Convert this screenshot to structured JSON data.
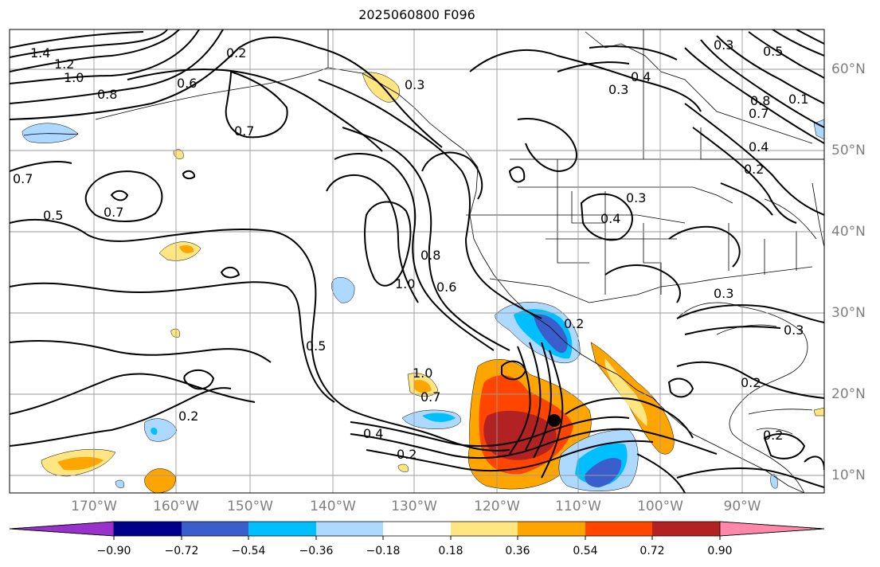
{
  "title": "2025060800 F096",
  "map": {
    "lon_labels": [
      "170°W",
      "160°W",
      "150°W",
      "140°W",
      "130°W",
      "120°W",
      "110°W",
      "100°W",
      "90°W"
    ],
    "lat_labels": [
      "60°N",
      "50°N",
      "40°N",
      "30°N",
      "20°N",
      "10°N"
    ],
    "marker": "storm-center-dot",
    "contour_labels": [
      {
        "id": "c1",
        "text": "1.4"
      },
      {
        "id": "c2",
        "text": "1.2"
      },
      {
        "id": "c3",
        "text": "1.0"
      },
      {
        "id": "c4",
        "text": "0.8"
      },
      {
        "id": "c5",
        "text": "0.6"
      },
      {
        "id": "c6",
        "text": "0.2"
      },
      {
        "id": "c7",
        "text": "0.7"
      },
      {
        "id": "c8",
        "text": "0.7"
      },
      {
        "id": "c9",
        "text": "0.5"
      },
      {
        "id": "c10",
        "text": "0.7"
      },
      {
        "id": "c11",
        "text": "0.3"
      },
      {
        "id": "c12",
        "text": "0.4"
      },
      {
        "id": "c13",
        "text": "0.3"
      },
      {
        "id": "c14",
        "text": "0.8"
      },
      {
        "id": "c15",
        "text": "0.7"
      },
      {
        "id": "c16",
        "text": "0.4"
      },
      {
        "id": "c17",
        "text": "0.2"
      },
      {
        "id": "c18",
        "text": "0.3"
      },
      {
        "id": "c19",
        "text": "0.4"
      },
      {
        "id": "c20",
        "text": "0.8"
      },
      {
        "id": "c21",
        "text": "1.0"
      },
      {
        "id": "c22",
        "text": "0.6"
      },
      {
        "id": "c23",
        "text": "0.5"
      },
      {
        "id": "c24",
        "text": "0.2"
      },
      {
        "id": "c25",
        "text": "1.0"
      },
      {
        "id": "c26",
        "text": "0.7"
      },
      {
        "id": "c27",
        "text": "0.4"
      },
      {
        "id": "c28",
        "text": "0.2"
      },
      {
        "id": "c29",
        "text": "0.3"
      },
      {
        "id": "c30",
        "text": "0.3"
      },
      {
        "id": "c31",
        "text": "0.2"
      },
      {
        "id": "c32",
        "text": "0.2"
      },
      {
        "id": "c33",
        "text": "0.2"
      },
      {
        "id": "c34",
        "text": "0.5"
      },
      {
        "id": "c35",
        "text": "0.1"
      },
      {
        "id": "c36",
        "text": "0.3"
      }
    ]
  },
  "colorbar": {
    "tick_labels": [
      "−0.90",
      "−0.72",
      "−0.54",
      "−0.36",
      "−0.18",
      "0.18",
      "0.36",
      "0.54",
      "0.72",
      "0.90"
    ],
    "colors": [
      "#9932cc",
      "#00008b",
      "#3a5fcd",
      "#00bfff",
      "#add8ff",
      "#ffffff",
      "#ffe680",
      "#ffa500",
      "#ff4500",
      "#b22222",
      "#ff88aa"
    ]
  }
}
